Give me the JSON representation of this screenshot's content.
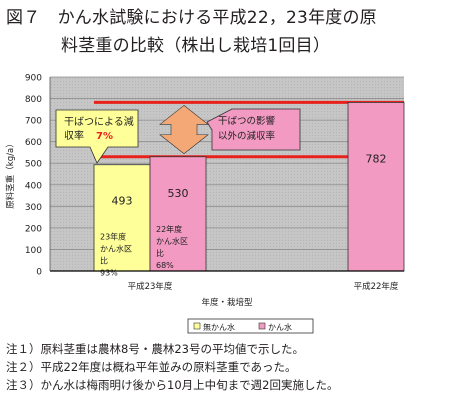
{
  "title": {
    "line1": "図７　かん水試験における平成22，23年度の原",
    "line2": "料茎重の比較（株出し栽培1回目）"
  },
  "chart_data": {
    "type": "bar",
    "ylabel": "原料茎重（kg/a）",
    "xlabel": "年度・栽培型",
    "ylim": [
      0,
      900
    ],
    "yticks": [
      0,
      100,
      200,
      300,
      400,
      500,
      600,
      700,
      800,
      900
    ],
    "grid": true,
    "legend_position": "bottom",
    "groups": [
      "平成23年度",
      "平成22年度"
    ],
    "series": [
      {
        "name": "無かん水",
        "color": "#ffff99"
      },
      {
        "name": "かん水",
        "color": "#f29ac2"
      }
    ],
    "bars": [
      {
        "group": "平成23年度",
        "series": "無かん水",
        "value": 493,
        "label": "493",
        "note": [
          "23年度",
          "かん水区",
          "比",
          "93%"
        ]
      },
      {
        "group": "平成23年度",
        "series": "かん水",
        "value": 530,
        "label": "530",
        "note": [
          "22年度",
          "かん水区",
          "比",
          "68%"
        ]
      },
      {
        "group": "平成22年度",
        "series": "かん水",
        "value": 782,
        "label": "782",
        "note": []
      }
    ],
    "reference_lines": [
      {
        "value": 782,
        "color": "#e8211b"
      },
      {
        "value": 530,
        "color": "#e8211b"
      }
    ],
    "callouts": [
      {
        "text": [
          "干ばつによる減",
          "収率"
        ],
        "highlight": "7%",
        "highlight_color": "#e8211b",
        "fill": "#ffff99"
      },
      {
        "text": [
          "干ばつの影響",
          "以外の減収率"
        ],
        "fill": "#f29ac2"
      }
    ]
  },
  "notes": [
    "注１）原料茎重は農林8号・農林23号の平均値で示した。",
    "注２）平成22年度は概ね平年並みの原料茎重であった。",
    "注３）かん水は梅雨明け後から10月上中旬まで週2回実施した。"
  ]
}
